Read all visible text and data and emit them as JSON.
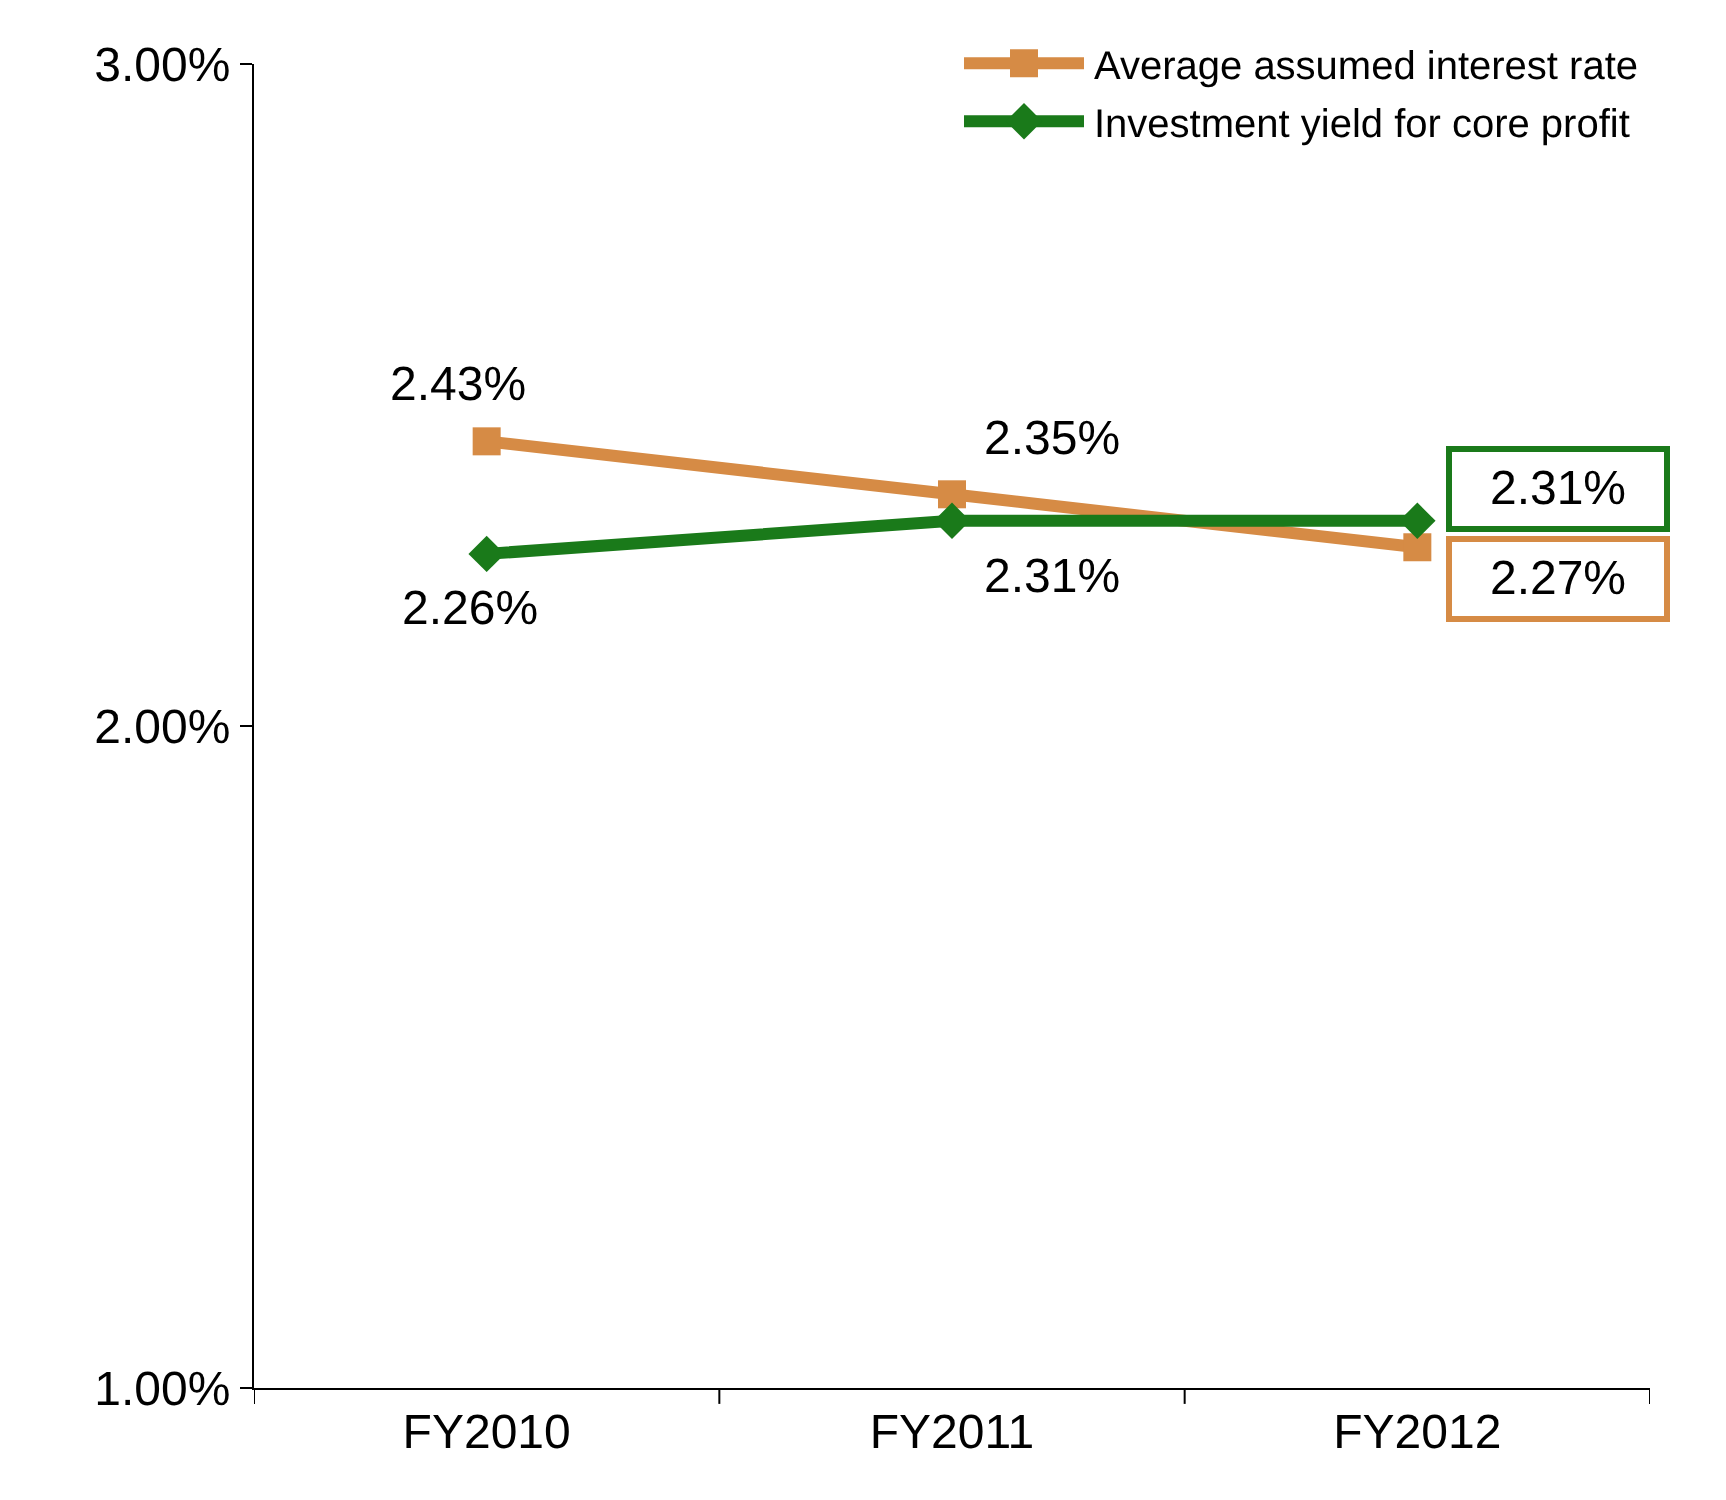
{
  "chart_data": {
    "type": "line",
    "categories": [
      "FY2010",
      "FY2011",
      "FY2012"
    ],
    "series": [
      {
        "name": "Average assumed interest rate",
        "color": "#d68b45",
        "marker": "square",
        "values": [
          2.43,
          2.35,
          2.27
        ],
        "value_labels": [
          "2.43%",
          "2.35%",
          "2.27%"
        ]
      },
      {
        "name": "Investment yield for core profit",
        "color": "#1a7a1a",
        "marker": "diamond",
        "values": [
          2.26,
          2.31,
          2.31
        ],
        "value_labels": [
          "2.26%",
          "2.31%",
          "2.31%"
        ]
      }
    ],
    "ylim": [
      1.0,
      3.0
    ],
    "yticks": [
      {
        "value": 1.0,
        "label": "1.00%"
      },
      {
        "value": 2.0,
        "label": "2.00%"
      },
      {
        "value": 3.0,
        "label": "3.00%"
      }
    ],
    "legend": "top right",
    "line_style": "solid"
  }
}
